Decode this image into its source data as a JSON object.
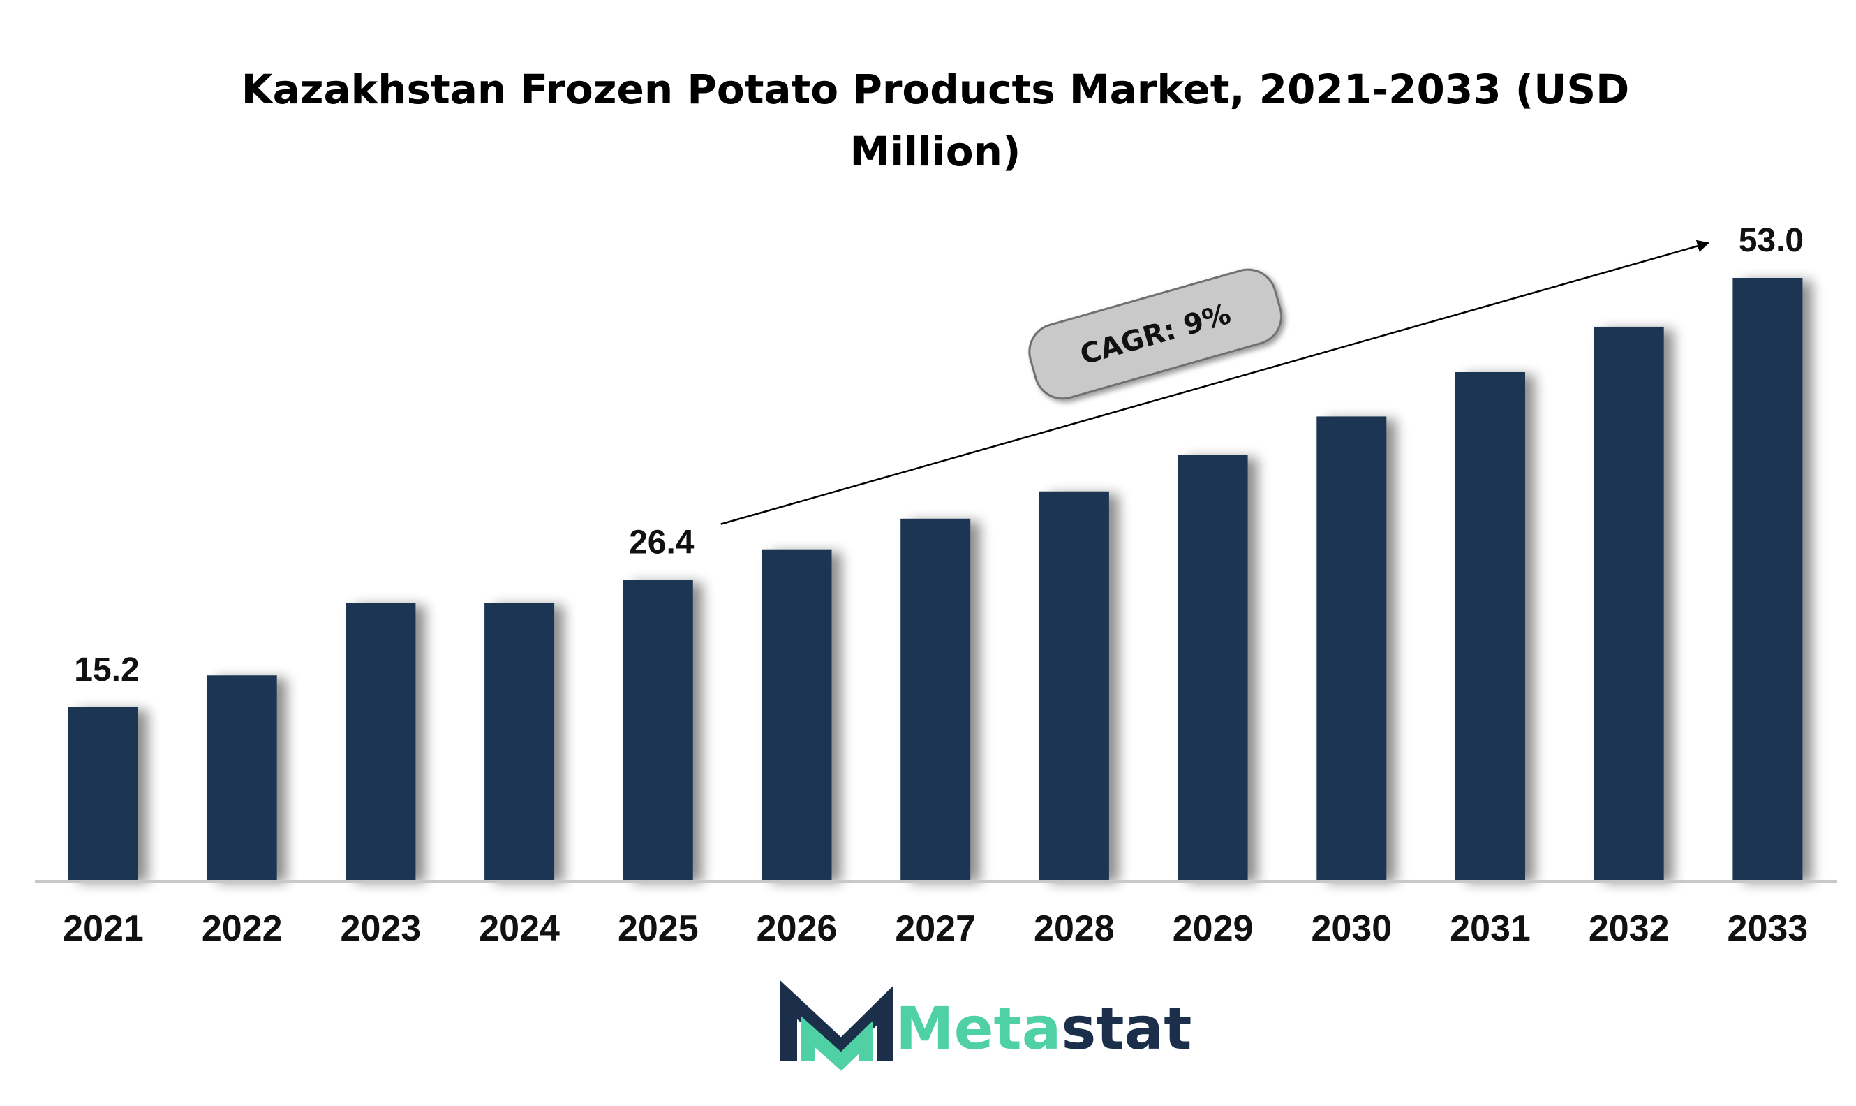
{
  "chart_data": {
    "type": "bar",
    "title_lines": [
      "Kazakhstan Frozen Potato Products Market, 2021-2033 (USD",
      "Million)"
    ],
    "categories": [
      "2021",
      "2022",
      "2023",
      "2024",
      "2025",
      "2026",
      "2027",
      "2028",
      "2029",
      "2030",
      "2031",
      "2032",
      "2033"
    ],
    "values": [
      15.2,
      18.0,
      24.4,
      24.4,
      26.4,
      29.1,
      31.8,
      34.2,
      37.4,
      40.8,
      44.7,
      48.7,
      53.0
    ],
    "data_labels": [
      {
        "index": 0,
        "text": "15.2"
      },
      {
        "index": 4,
        "text": "26.4"
      },
      {
        "index": 12,
        "text": "53.0"
      }
    ],
    "xlabel": "",
    "ylabel": "",
    "ylim": [
      0,
      53.0
    ],
    "grid": false,
    "bar_color": "#1b3552",
    "annotation": {
      "text": "CAGR: 9%",
      "from_index": 4,
      "to_index": 12
    }
  },
  "logo": {
    "prefix": "Meta",
    "suffix": "stat",
    "prefix_color": "#4fd1a5",
    "suffix_color": "#1b2f4a",
    "icon": "metastat-m-logo-icon"
  }
}
